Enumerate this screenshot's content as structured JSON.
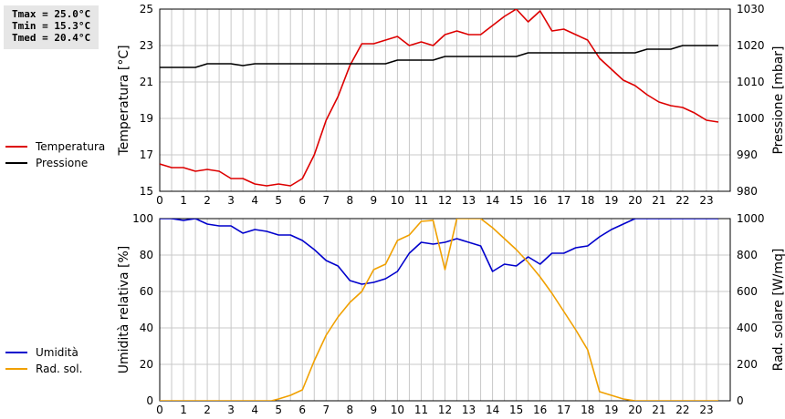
{
  "stats": {
    "tmax": "Tmax = 25.0°C",
    "tmin": "Tmin = 15.3°C",
    "tmed": "Tmed = 20.4°C"
  },
  "colors": {
    "temperature": "#dd0000",
    "pressure": "#000000",
    "humidity": "#0000cc",
    "radiation": "#f0a000",
    "grid": "#c8c8c8"
  },
  "chart_data": [
    {
      "type": "line",
      "title": "",
      "xlabel": "",
      "xlim": [
        0,
        24
      ],
      "xticks": [
        "0",
        "1",
        "2",
        "3",
        "4",
        "5",
        "6",
        "7",
        "8",
        "9",
        "10",
        "11",
        "12",
        "13",
        "14",
        "15",
        "16",
        "17",
        "18",
        "19",
        "20",
        "21",
        "22",
        "23"
      ],
      "ylabel_left": "Temperatura [°C]",
      "ylim_left": [
        15,
        25
      ],
      "yticks_left": [
        "15",
        "17",
        "19",
        "21",
        "23",
        "25"
      ],
      "ylabel_right": "Pressione [mbar]",
      "ylim_right": [
        980,
        1030
      ],
      "yticks_right": [
        "980",
        "990",
        "1000",
        "1010",
        "1020",
        "1030"
      ],
      "grid": true,
      "legend_position": "left",
      "series": [
        {
          "name": "Temperatura",
          "axis": "left",
          "color_key": "temperature",
          "points": [
            [
              0,
              16.5
            ],
            [
              0.25,
              16.4
            ],
            [
              0.5,
              16.3
            ],
            [
              1,
              16.3
            ],
            [
              1.5,
              16.1
            ],
            [
              2,
              16.2
            ],
            [
              2.5,
              16.1
            ],
            [
              3,
              15.7
            ],
            [
              3.5,
              15.7
            ],
            [
              4,
              15.4
            ],
            [
              4.5,
              15.3
            ],
            [
              5,
              15.4
            ],
            [
              5.5,
              15.3
            ],
            [
              6,
              15.7
            ],
            [
              6.5,
              17.0
            ],
            [
              7,
              18.9
            ],
            [
              7.5,
              20.2
            ],
            [
              8,
              21.9
            ],
            [
              8.5,
              23.1
            ],
            [
              9,
              23.1
            ],
            [
              9.5,
              23.3
            ],
            [
              10,
              23.5
            ],
            [
              10.5,
              23.0
            ],
            [
              11,
              23.2
            ],
            [
              11.5,
              23.0
            ],
            [
              12,
              23.6
            ],
            [
              12.5,
              23.8
            ],
            [
              13,
              23.6
            ],
            [
              13.5,
              23.6
            ],
            [
              14,
              24.1
            ],
            [
              14.5,
              24.6
            ],
            [
              15,
              25.0
            ],
            [
              15.5,
              24.3
            ],
            [
              16,
              24.9
            ],
            [
              16.5,
              23.8
            ],
            [
              17,
              23.9
            ],
            [
              17.5,
              23.6
            ],
            [
              18,
              23.3
            ],
            [
              18.5,
              22.3
            ],
            [
              19,
              21.7
            ],
            [
              19.5,
              21.1
            ],
            [
              20,
              20.8
            ],
            [
              20.5,
              20.3
            ],
            [
              21,
              19.9
            ],
            [
              21.5,
              19.7
            ],
            [
              22,
              19.6
            ],
            [
              22.5,
              19.3
            ],
            [
              23,
              18.9
            ],
            [
              23.5,
              18.8
            ]
          ]
        },
        {
          "name": "Pressione",
          "axis": "right",
          "color_key": "pressure",
          "points": [
            [
              0,
              1014
            ],
            [
              1.5,
              1014
            ],
            [
              2,
              1015
            ],
            [
              3,
              1015
            ],
            [
              3.5,
              1014.5
            ],
            [
              4,
              1015
            ],
            [
              5,
              1015
            ],
            [
              6,
              1015
            ],
            [
              7,
              1015
            ],
            [
              8,
              1015
            ],
            [
              9,
              1015
            ],
            [
              9.5,
              1015
            ],
            [
              10,
              1016
            ],
            [
              11,
              1016
            ],
            [
              11.5,
              1016
            ],
            [
              12,
              1017
            ],
            [
              13,
              1017
            ],
            [
              14,
              1017
            ],
            [
              15,
              1017
            ],
            [
              15.5,
              1018
            ],
            [
              16,
              1018
            ],
            [
              17,
              1018
            ],
            [
              18,
              1018
            ],
            [
              19,
              1018
            ],
            [
              20,
              1018
            ],
            [
              20.5,
              1019
            ],
            [
              21,
              1019
            ],
            [
              21.5,
              1019
            ],
            [
              22,
              1020
            ],
            [
              23,
              1020
            ],
            [
              23.5,
              1020
            ]
          ]
        }
      ]
    },
    {
      "type": "line",
      "title": "",
      "xlabel": "",
      "xlim": [
        0,
        24
      ],
      "xticks": [
        "0",
        "1",
        "2",
        "3",
        "4",
        "5",
        "6",
        "7",
        "8",
        "9",
        "10",
        "11",
        "12",
        "13",
        "14",
        "15",
        "16",
        "17",
        "18",
        "19",
        "20",
        "21",
        "22",
        "23"
      ],
      "ylabel_left": "Umidità relativa [%]",
      "ylim_left": [
        0,
        100
      ],
      "yticks_left": [
        "0",
        "20",
        "40",
        "60",
        "80",
        "100"
      ],
      "ylabel_right": "Rad. solare [W/mq]",
      "ylim_right": [
        0,
        1000
      ],
      "yticks_right": [
        "0",
        "200",
        "400",
        "600",
        "800",
        "1000"
      ],
      "grid": true,
      "legend_position": "left",
      "series": [
        {
          "name": "Umidità",
          "axis": "left",
          "color_key": "humidity",
          "points": [
            [
              0,
              100
            ],
            [
              0.5,
              100
            ],
            [
              1,
              99
            ],
            [
              1.5,
              100
            ],
            [
              2,
              97
            ],
            [
              2.5,
              96
            ],
            [
              3,
              96
            ],
            [
              3.5,
              92
            ],
            [
              4,
              94
            ],
            [
              4.5,
              93
            ],
            [
              5,
              91
            ],
            [
              5.5,
              91
            ],
            [
              6,
              88
            ],
            [
              6.5,
              83
            ],
            [
              7,
              77
            ],
            [
              7.5,
              74
            ],
            [
              8,
              66
            ],
            [
              8.5,
              64
            ],
            [
              9,
              65
            ],
            [
              9.5,
              67
            ],
            [
              10,
              71
            ],
            [
              10.5,
              81
            ],
            [
              11,
              87
            ],
            [
              11.5,
              86
            ],
            [
              12,
              87
            ],
            [
              12.5,
              89
            ],
            [
              13,
              87
            ],
            [
              13.5,
              85
            ],
            [
              14,
              71
            ],
            [
              14.5,
              75
            ],
            [
              15,
              74
            ],
            [
              15.5,
              79
            ],
            [
              16,
              75
            ],
            [
              16.5,
              81
            ],
            [
              17,
              81
            ],
            [
              17.5,
              84
            ],
            [
              18,
              85
            ],
            [
              18.5,
              90
            ],
            [
              19,
              94
            ],
            [
              19.5,
              97
            ],
            [
              20,
              100
            ],
            [
              23.5,
              100
            ]
          ]
        },
        {
          "name": "Rad. sol.",
          "axis": "right",
          "color_key": "radiation",
          "points": [
            [
              0,
              0
            ],
            [
              1,
              0
            ],
            [
              2,
              0
            ],
            [
              3,
              0
            ],
            [
              4,
              0
            ],
            [
              4.7,
              0
            ],
            [
              5,
              10
            ],
            [
              5.5,
              30
            ],
            [
              6,
              60
            ],
            [
              6.5,
              220
            ],
            [
              7,
              360
            ],
            [
              7.5,
              460
            ],
            [
              8,
              540
            ],
            [
              8.5,
              600
            ],
            [
              9,
              720
            ],
            [
              9.5,
              750
            ],
            [
              10,
              880
            ],
            [
              10.5,
              910
            ],
            [
              11,
              985
            ],
            [
              11.5,
              990
            ],
            [
              12,
              720
            ],
            [
              12.5,
              1000
            ],
            [
              13.5,
              1000
            ],
            [
              14,
              950
            ],
            [
              14.5,
              890
            ],
            [
              15,
              830
            ],
            [
              15.5,
              760
            ],
            [
              16,
              680
            ],
            [
              16.5,
              590
            ],
            [
              17,
              490
            ],
            [
              17.5,
              390
            ],
            [
              18,
              280
            ],
            [
              18.5,
              50
            ],
            [
              19,
              30
            ],
            [
              19.5,
              10
            ],
            [
              20,
              0
            ],
            [
              21,
              0
            ],
            [
              22,
              0
            ],
            [
              23,
              0
            ],
            [
              23.5,
              0
            ]
          ]
        }
      ]
    }
  ]
}
